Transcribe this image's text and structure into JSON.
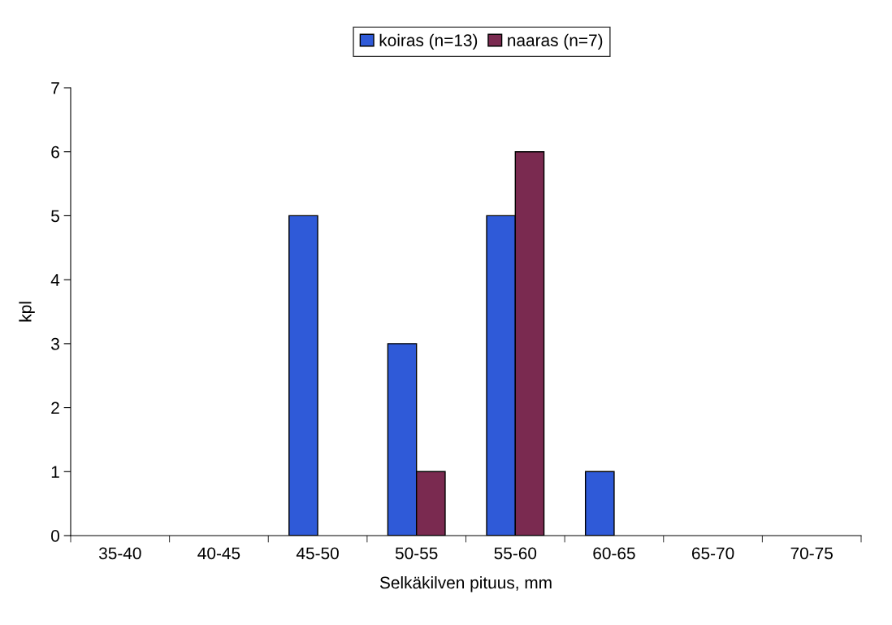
{
  "chart_data": {
    "type": "bar",
    "xlabel": "Selkäkilven pituus, mm",
    "ylabel": "kpl",
    "categories": [
      "35-40",
      "40-45",
      "45-50",
      "50-55",
      "55-60",
      "60-65",
      "65-70",
      "70-75"
    ],
    "series": [
      {
        "name": "koiras (n=13)",
        "color": "#2f5ad8",
        "values": [
          0,
          0,
          5,
          3,
          5,
          1,
          0,
          0
        ]
      },
      {
        "name": "naaras (n=7)",
        "color": "#7a2a50",
        "values": [
          0,
          0,
          0,
          1,
          6,
          0,
          0,
          0
        ]
      }
    ],
    "ylim": [
      0,
      7
    ],
    "yticks": [
      0,
      1,
      2,
      3,
      4,
      5,
      6,
      7
    ],
    "grid": false,
    "legend": "top"
  }
}
